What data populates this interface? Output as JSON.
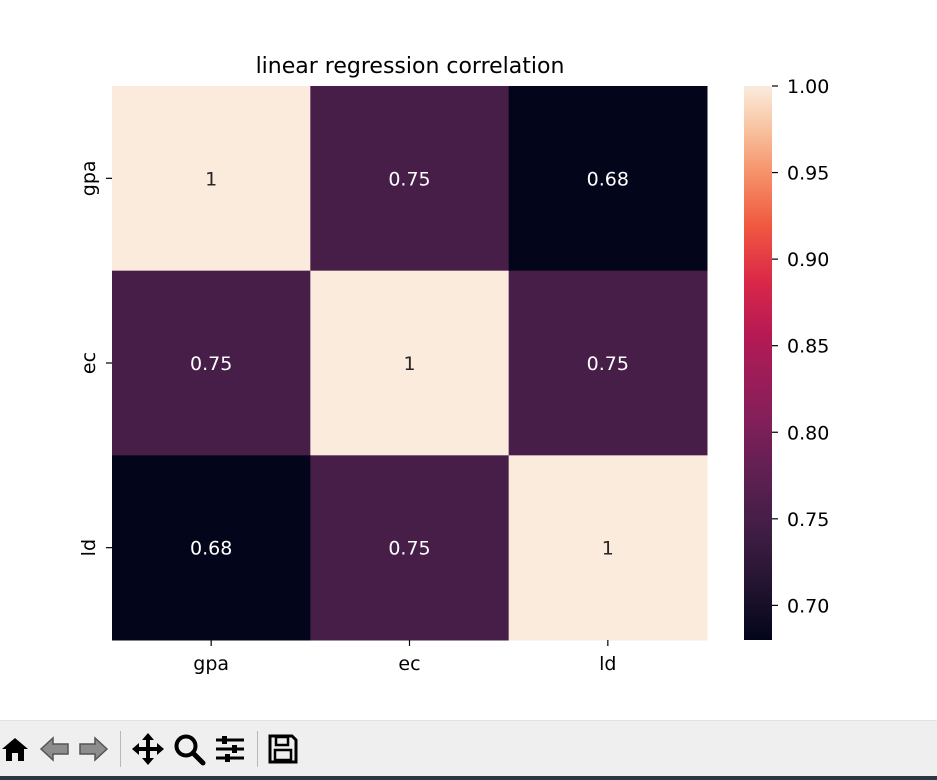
{
  "chart_data": {
    "type": "heatmap",
    "title": "linear regression correlation",
    "xlabel": "",
    "ylabel": "",
    "x_categories": [
      "gpa",
      "ec",
      "ld"
    ],
    "y_categories": [
      "gpa",
      "ec",
      "ld"
    ],
    "values": [
      [
        1.0,
        0.75,
        0.68
      ],
      [
        0.75,
        1.0,
        0.75
      ],
      [
        0.68,
        0.75,
        1.0
      ]
    ],
    "annotations": [
      [
        "1",
        "0.75",
        "0.68"
      ],
      [
        "0.75",
        "1",
        "0.75"
      ],
      [
        "0.68",
        "0.75",
        "1"
      ]
    ],
    "colormap": "rocket",
    "colorbar": {
      "range": [
        0.68,
        1.0
      ],
      "ticks": [
        0.7,
        0.75,
        0.8,
        0.85,
        0.9,
        0.95,
        1.0
      ],
      "tick_labels": [
        "0.70",
        "0.75",
        "0.80",
        "0.85",
        "0.90",
        "0.95",
        "1.00"
      ]
    },
    "legend": "colorbar-right",
    "grid": false
  },
  "toolbar": {
    "buttons": [
      {
        "name": "home-button",
        "icon": "home-icon"
      },
      {
        "name": "back-button",
        "icon": "arrow-left-icon"
      },
      {
        "name": "forward-button",
        "icon": "arrow-right-icon"
      },
      {
        "name": "pan-button",
        "icon": "move-icon"
      },
      {
        "name": "zoom-button",
        "icon": "magnifier-icon"
      },
      {
        "name": "configure-subplots-button",
        "icon": "sliders-icon"
      },
      {
        "name": "save-button",
        "icon": "floppy-disk-icon"
      }
    ]
  }
}
